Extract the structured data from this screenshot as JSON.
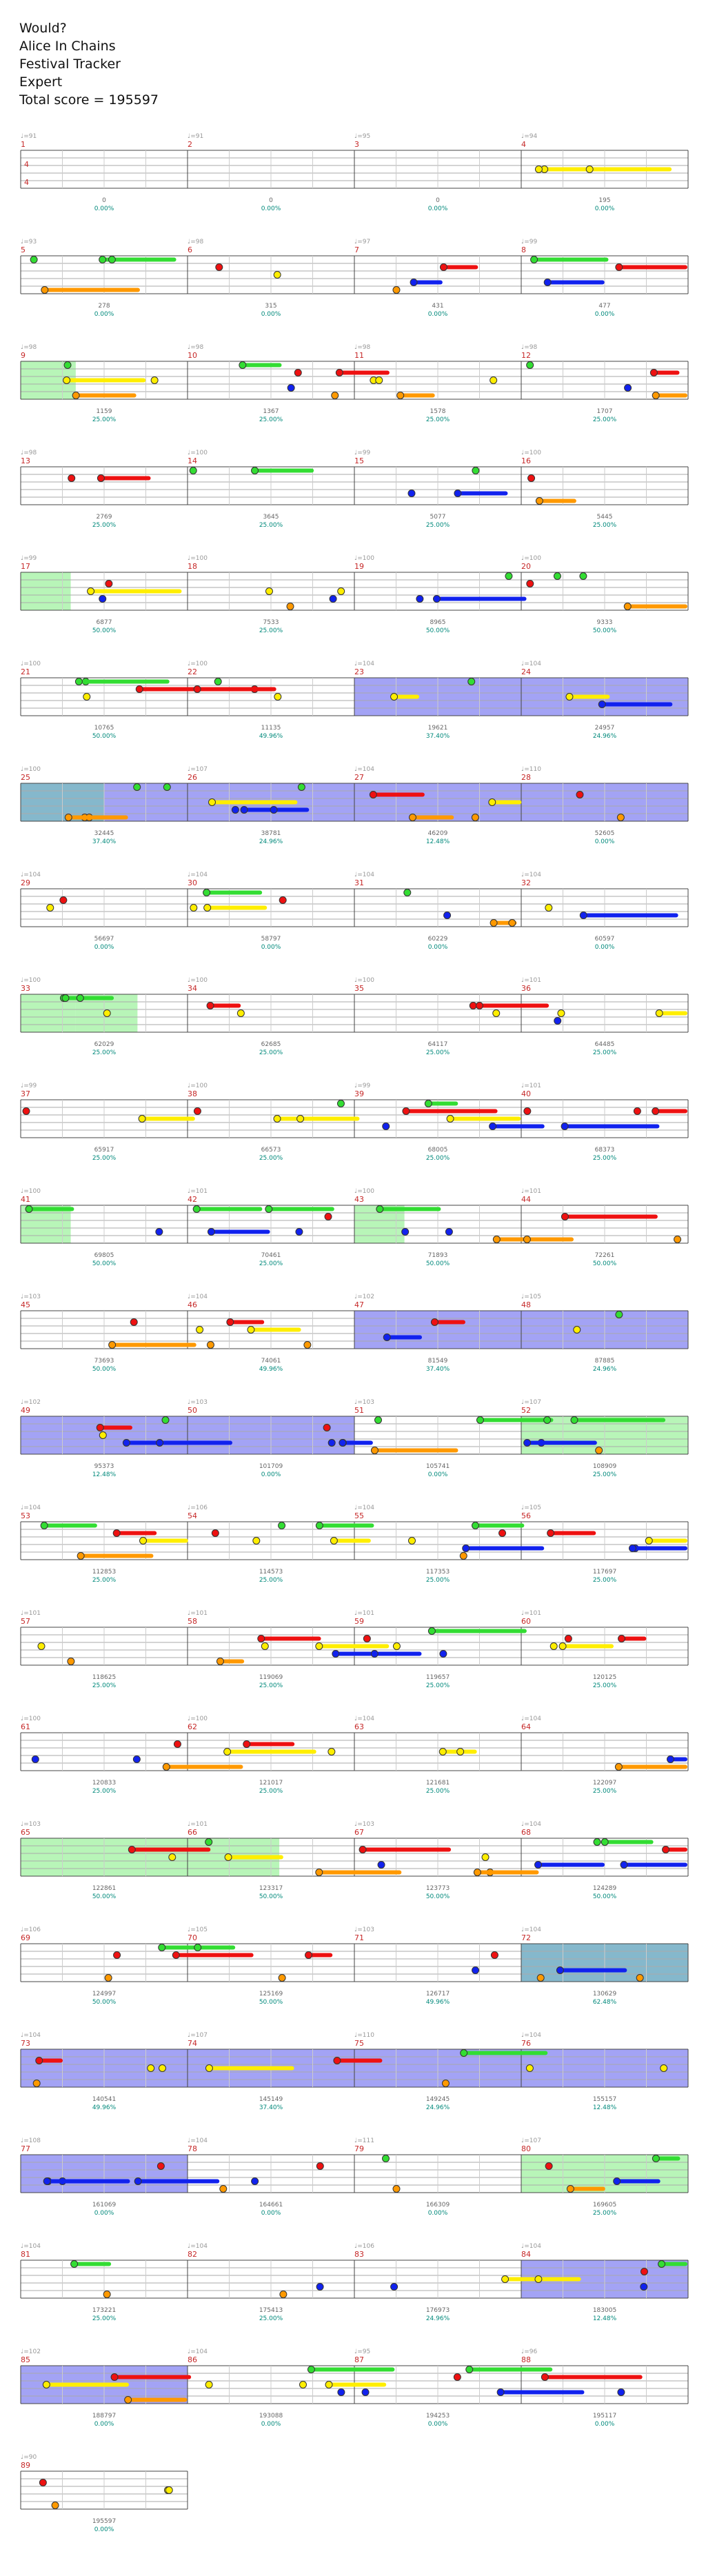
{
  "header": {
    "song": "Would?",
    "artist": "Alice In Chains",
    "tracker": "Festival Tracker",
    "difficulty": "Expert",
    "total_score": "Total score = 195597"
  },
  "colors": {
    "green": "#33dd33",
    "red": "#ee1111",
    "yellow": "#ffee00",
    "blue": "#1122ee",
    "orange": "#ff9900",
    "overdrive": "#4444dd",
    "star": "#33cc33",
    "combined": "#2277aa"
  },
  "chart_data": {
    "type": "table",
    "title": "Would? - Alice In Chains",
    "time_signature": "4/4",
    "measures": [
      {
        "n": 1,
        "score": "0",
        "pct": "0.00%"
      },
      {
        "n": 2,
        "score": "0",
        "pct": "0.00%"
      },
      {
        "n": 3,
        "score": "0",
        "pct": "0.00%"
      },
      {
        "n": 4,
        "score": "195",
        "pct": "0.00%"
      },
      {
        "n": 5,
        "score": "278",
        "pct": "0.00%"
      },
      {
        "n": 6,
        "score": "315",
        "pct": "0.00%"
      },
      {
        "n": 7,
        "score": "431",
        "pct": "0.00%"
      },
      {
        "n": 8,
        "score": "477",
        "pct": "0.00%"
      },
      {
        "n": 9,
        "score": "1159",
        "pct": "25.00%"
      },
      {
        "n": 10,
        "score": "1367",
        "pct": "25.00%"
      },
      {
        "n": 11,
        "score": "1578",
        "pct": "25.00%"
      },
      {
        "n": 12,
        "score": "1707",
        "pct": "25.00%"
      },
      {
        "n": 13,
        "score": "2769",
        "pct": "25.00%"
      },
      {
        "n": 14,
        "score": "3645",
        "pct": "25.00%"
      },
      {
        "n": 15,
        "score": "5077",
        "pct": "25.00%"
      },
      {
        "n": 16,
        "score": "5445",
        "pct": "25.00%"
      },
      {
        "n": 17,
        "score": "6877",
        "pct": "50.00%"
      },
      {
        "n": 18,
        "score": "7533",
        "pct": "25.00%"
      },
      {
        "n": 19,
        "score": "8965",
        "pct": "50.00%"
      },
      {
        "n": 20,
        "score": "9333",
        "pct": "50.00%"
      },
      {
        "n": 21,
        "score": "10765",
        "pct": "50.00%"
      },
      {
        "n": 22,
        "score": "11135",
        "pct": "49.96%"
      },
      {
        "n": 23,
        "score": "19621",
        "pct": "37.40%"
      },
      {
        "n": 24,
        "score": "24957",
        "pct": "24.96%"
      },
      {
        "n": 25,
        "score": "32445",
        "pct": "37.40%"
      },
      {
        "n": 26,
        "score": "38781",
        "pct": "24.96%"
      },
      {
        "n": 27,
        "score": "46209",
        "pct": "12.48%"
      },
      {
        "n": 28,
        "score": "52605",
        "pct": "0.00%"
      },
      {
        "n": 29,
        "score": "56697",
        "pct": "0.00%"
      },
      {
        "n": 30,
        "score": "58797",
        "pct": "0.00%"
      },
      {
        "n": 31,
        "score": "60229",
        "pct": "0.00%"
      },
      {
        "n": 32,
        "score": "60597",
        "pct": "0.00%"
      },
      {
        "n": 33,
        "score": "62029",
        "pct": "25.00%"
      },
      {
        "n": 34,
        "score": "62685",
        "pct": "25.00%"
      },
      {
        "n": 35,
        "score": "64117",
        "pct": "25.00%"
      },
      {
        "n": 36,
        "score": "64485",
        "pct": "25.00%"
      },
      {
        "n": 37,
        "score": "65917",
        "pct": "25.00%"
      },
      {
        "n": 38,
        "score": "66573",
        "pct": "25.00%"
      },
      {
        "n": 39,
        "score": "68005",
        "pct": "25.00%"
      },
      {
        "n": 40,
        "score": "68373",
        "pct": "25.00%"
      },
      {
        "n": 41,
        "score": "69805",
        "pct": "50.00%"
      },
      {
        "n": 42,
        "score": "70461",
        "pct": "25.00%"
      },
      {
        "n": 43,
        "score": "71893",
        "pct": "50.00%"
      },
      {
        "n": 44,
        "score": "72261",
        "pct": "50.00%"
      },
      {
        "n": 45,
        "score": "73693",
        "pct": "50.00%"
      },
      {
        "n": 46,
        "score": "74061",
        "pct": "49.96%"
      },
      {
        "n": 47,
        "score": "81549",
        "pct": "37.40%"
      },
      {
        "n": 48,
        "score": "87885",
        "pct": "24.96%"
      },
      {
        "n": 49,
        "score": "95373",
        "pct": "12.48%"
      },
      {
        "n": 50,
        "score": "101709",
        "pct": "0.00%"
      },
      {
        "n": 51,
        "score": "105741",
        "pct": "0.00%"
      },
      {
        "n": 52,
        "score": "108909",
        "pct": "25.00%"
      },
      {
        "n": 53,
        "score": "112853",
        "pct": "25.00%"
      },
      {
        "n": 54,
        "score": "114573",
        "pct": "25.00%"
      },
      {
        "n": 55,
        "score": "117353",
        "pct": "25.00%"
      },
      {
        "n": 56,
        "score": "117697",
        "pct": "25.00%"
      },
      {
        "n": 57,
        "score": "118625",
        "pct": "25.00%"
      },
      {
        "n": 58,
        "score": "119069",
        "pct": "25.00%"
      },
      {
        "n": 59,
        "score": "119657",
        "pct": "25.00%"
      },
      {
        "n": 60,
        "score": "120125",
        "pct": "25.00%"
      },
      {
        "n": 61,
        "score": "120833",
        "pct": "25.00%"
      },
      {
        "n": 62,
        "score": "121017",
        "pct": "25.00%"
      },
      {
        "n": 63,
        "score": "121681",
        "pct": "25.00%"
      },
      {
        "n": 64,
        "score": "122097",
        "pct": "25.00%"
      },
      {
        "n": 65,
        "score": "122861",
        "pct": "50.00%"
      },
      {
        "n": 66,
        "score": "123317",
        "pct": "50.00%"
      },
      {
        "n": 67,
        "score": "123773",
        "pct": "50.00%"
      },
      {
        "n": 68,
        "score": "124289",
        "pct": "50.00%"
      },
      {
        "n": 69,
        "score": "124997",
        "pct": "50.00%"
      },
      {
        "n": 70,
        "score": "125169",
        "pct": "50.00%"
      },
      {
        "n": 71,
        "score": "126717",
        "pct": "49.96%"
      },
      {
        "n": 72,
        "score": "130629",
        "pct": "62.48%"
      },
      {
        "n": 73,
        "score": "140541",
        "pct": "49.96%"
      },
      {
        "n": 74,
        "score": "145149",
        "pct": "37.40%"
      },
      {
        "n": 75,
        "score": "149245",
        "pct": "24.96%"
      },
      {
        "n": 76,
        "score": "155157",
        "pct": "12.48%"
      },
      {
        "n": 77,
        "score": "161069",
        "pct": "0.00%"
      },
      {
        "n": 78,
        "score": "164661",
        "pct": "0.00%"
      },
      {
        "n": 79,
        "score": "166309",
        "pct": "0.00%"
      },
      {
        "n": 80,
        "score": "169605",
        "pct": "25.00%"
      },
      {
        "n": 81,
        "score": "173221",
        "pct": "25.00%"
      },
      {
        "n": 82,
        "score": "175413",
        "pct": "25.00%"
      },
      {
        "n": 83,
        "score": "176973",
        "pct": "24.96%"
      },
      {
        "n": 84,
        "score": "183005",
        "pct": "12.48%"
      },
      {
        "n": 85,
        "score": "188797",
        "pct": "0.00%"
      },
      {
        "n": 86,
        "score": "193088",
        "pct": "0.00%"
      },
      {
        "n": 87,
        "score": "194253",
        "pct": "0.00%"
      },
      {
        "n": 88,
        "score": "195117",
        "pct": "0.00%"
      },
      {
        "n": 89,
        "score": "195597",
        "pct": "0.00%"
      }
    ],
    "rows": [
      {
        "measures": [
          1,
          2,
          3,
          4
        ],
        "bpm": [
          "♩=91",
          "♩=91",
          "♩=95",
          "♩=94"
        ],
        "ts": true
      },
      {
        "measures": [
          5,
          6,
          7,
          8
        ],
        "bpm": [
          "♩=93",
          "♩=98",
          "♩=97",
          "♩=99"
        ]
      },
      {
        "measures": [
          9,
          10,
          11,
          12
        ],
        "bpm": [
          "♩=98",
          "♩=98",
          "♩=98",
          "♩=98"
        ],
        "od": [],
        "sp": [
          [
            0,
            0.33,
            "star"
          ]
        ]
      },
      {
        "measures": [
          13,
          14,
          15,
          16
        ],
        "bpm": [
          "♩=98",
          "♩=100",
          "♩=99",
          "♩=100"
        ]
      },
      {
        "measures": [
          17,
          18,
          19,
          20
        ],
        "bpm": [
          "♩=99",
          "♩=100",
          "♩=100",
          "♩=100"
        ],
        "sp": [
          [
            0,
            0.3,
            "star"
          ]
        ]
      },
      {
        "measures": [
          21,
          22,
          23,
          24
        ],
        "bpm": [
          "♩=100",
          "♩=100",
          "♩=104",
          "♩=104"
        ],
        "sp": [
          [
            2,
            4,
            "od"
          ]
        ]
      },
      {
        "measures": [
          25,
          26,
          27,
          28
        ],
        "bpm": [
          "♩=100",
          "♩=107",
          "♩=104",
          "♩=110"
        ],
        "sp": [
          [
            0,
            0.5,
            "combined"
          ],
          [
            0.5,
            4,
            "od"
          ]
        ]
      },
      {
        "measures": [
          29,
          30,
          31,
          32
        ],
        "bpm": [
          "♩=104",
          "♩=104",
          "♩=104",
          "♩=104"
        ]
      },
      {
        "measures": [
          33,
          34,
          35,
          36
        ],
        "bpm": [
          "♩=100",
          "♩=100",
          "♩=100",
          "♩=101"
        ],
        "sp": [
          [
            0,
            0.33,
            "star"
          ],
          [
            0.33,
            0.7,
            "star"
          ]
        ]
      },
      {
        "measures": [
          37,
          38,
          39,
          40
        ],
        "bpm": [
          "♩=99",
          "♩=100",
          "♩=99",
          "♩=101"
        ]
      },
      {
        "measures": [
          41,
          42,
          43,
          44
        ],
        "bpm": [
          "♩=100",
          "♩=101",
          "♩=100",
          "♩=101"
        ],
        "sp": [
          [
            0,
            0.3,
            "star"
          ],
          [
            2,
            2.3,
            "star"
          ]
        ]
      },
      {
        "measures": [
          45,
          46,
          47,
          48
        ],
        "bpm": [
          "♩=103",
          "♩=104",
          "♩=102",
          "♩=105"
        ],
        "sp": [
          [
            2,
            4,
            "od"
          ]
        ]
      },
      {
        "measures": [
          49,
          50,
          51,
          52
        ],
        "bpm": [
          "♩=102",
          "♩=103",
          "♩=103",
          "♩=107"
        ],
        "sp": [
          [
            0,
            2,
            "od"
          ],
          [
            3,
            4,
            "star"
          ]
        ]
      },
      {
        "measures": [
          53,
          54,
          55,
          56
        ],
        "bpm": [
          "♩=104",
          "♩=106",
          "♩=104",
          "♩=105"
        ]
      },
      {
        "measures": [
          57,
          58,
          59,
          60
        ],
        "bpm": [
          "♩=101",
          "♩=101",
          "♩=101",
          "♩=101"
        ]
      },
      {
        "measures": [
          61,
          62,
          63,
          64
        ],
        "bpm": [
          "♩=100",
          "♩=100",
          "♩=104",
          "♩=104"
        ]
      },
      {
        "measures": [
          65,
          66,
          67,
          68
        ],
        "bpm": [
          "♩=103",
          "♩=101",
          "♩=103",
          "♩=104"
        ],
        "sp": [
          [
            0,
            1.55,
            "star"
          ]
        ]
      },
      {
        "measures": [
          69,
          70,
          71,
          72
        ],
        "bpm": [
          "♩=106",
          "♩=105",
          "♩=103",
          "♩=104"
        ],
        "sp": [
          [
            3,
            4,
            "combined"
          ]
        ]
      },
      {
        "measures": [
          73,
          74,
          75,
          76
        ],
        "bpm": [
          "♩=104",
          "♩=107",
          "♩=110",
          "♩=104"
        ],
        "sp": [
          [
            0,
            4,
            "od"
          ]
        ]
      },
      {
        "measures": [
          77,
          78,
          79,
          80
        ],
        "bpm": [
          "♩=108",
          "♩=104",
          "♩=111",
          "♩=107"
        ],
        "sp": [
          [
            0,
            1,
            "od"
          ],
          [
            3,
            4,
            "star"
          ]
        ]
      },
      {
        "measures": [
          81,
          82,
          83,
          84
        ],
        "bpm": [
          "♩=104",
          "♩=104",
          "♩=106",
          "♩=104"
        ],
        "sp": [
          [
            3,
            4,
            "od"
          ]
        ]
      },
      {
        "measures": [
          85,
          86,
          87,
          88
        ],
        "bpm": [
          "♩=102",
          "♩=104",
          "♩=95",
          "♩=96"
        ],
        "sp": [
          [
            0,
            1,
            "od"
          ]
        ]
      },
      {
        "measures": [
          89
        ],
        "bpm": [
          "♩=90"
        ]
      }
    ]
  }
}
